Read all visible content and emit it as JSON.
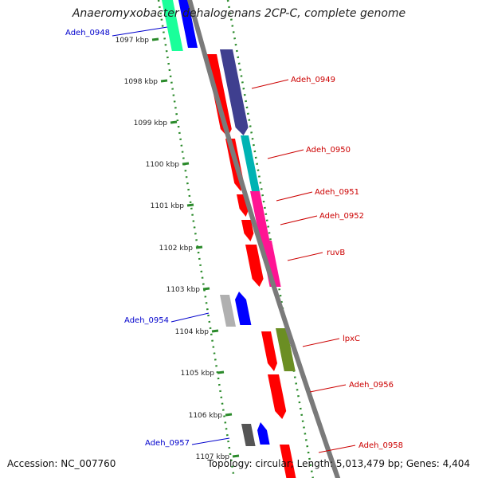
{
  "header": {
    "title": "Anaeromyxobacter dehalogenans 2CP-C, complete genome"
  },
  "footer": {
    "accession": "Accession: NC_007760",
    "summary": "Topology: circular; Length: 5,013,479 bp; Genes: 4,404"
  },
  "colors": {
    "backbone": "#7a7a7a",
    "tick": "#2a8a2a",
    "forward_label": "#cc0000",
    "reverse_label": "#0000cc"
  },
  "scale_labels": [
    "1097 kbp",
    "1098 kbp",
    "1099 kbp",
    "1100 kbp",
    "1101 kbp",
    "1102 kbp",
    "1103 kbp",
    "1104 kbp",
    "1105 kbp",
    "1106 kbp",
    "1107 kbp"
  ],
  "gene_labels": [
    {
      "name": "Adeh_0948",
      "strand": "reverse"
    },
    {
      "name": "Adeh_0949",
      "strand": "forward"
    },
    {
      "name": "Adeh_0950",
      "strand": "forward"
    },
    {
      "name": "Adeh_0951",
      "strand": "forward"
    },
    {
      "name": "Adeh_0952",
      "strand": "forward"
    },
    {
      "name": "ruvB",
      "strand": "forward"
    },
    {
      "name": "Adeh_0954",
      "strand": "reverse"
    },
    {
      "name": "lpxC",
      "strand": "forward"
    },
    {
      "name": "Adeh_0956",
      "strand": "forward"
    },
    {
      "name": "Adeh_0957",
      "strand": "reverse"
    },
    {
      "name": "Adeh_0958",
      "strand": "forward"
    }
  ],
  "feature_colors": [
    "#ff0000",
    "#3f3f8f",
    "#00b3b3",
    "#ff1493",
    "#6b8e23",
    "#0000ff",
    "#b0b0b0",
    "#555555",
    "#1aff9a"
  ]
}
